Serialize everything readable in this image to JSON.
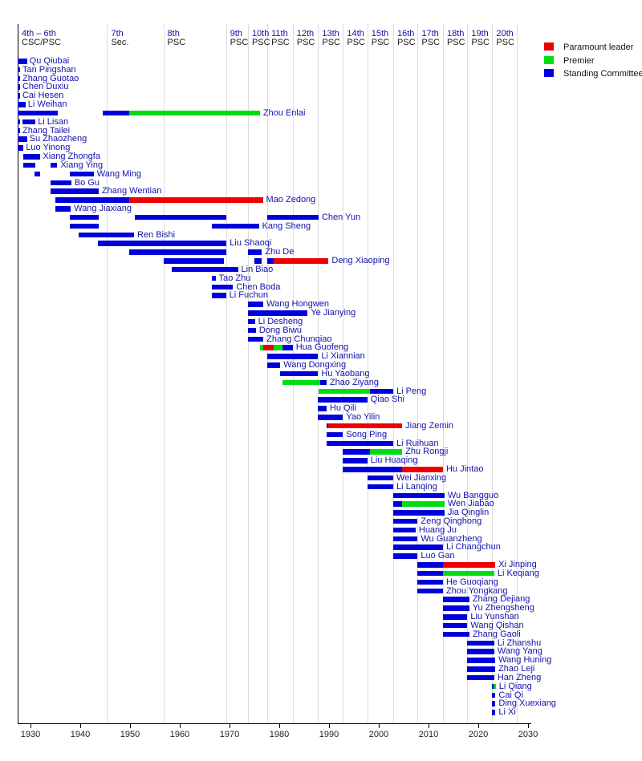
{
  "legend": {
    "items": [
      {
        "label": "Paramount leader",
        "type": "pl"
      },
      {
        "label": "Premier",
        "type": "pm"
      },
      {
        "label": "Standing Committee",
        "type": "sc"
      }
    ]
  },
  "colors": {
    "pl": "#ee0000",
    "pm": "#00dd11",
    "sc": "#0000dd",
    "name_text": "#1111aa",
    "grid": "#dcdcdc",
    "axis_text": "#222222"
  },
  "chart_data": {
    "type": "timeline-gantt",
    "title": "",
    "xlabel": "",
    "axis": {
      "start_year": 1927.42,
      "end_year": 2030.6,
      "tick_years": [
        1930,
        1940,
        1950,
        1960,
        1970,
        1980,
        1990,
        2000,
        2010,
        2020,
        2030
      ],
      "grid": true
    },
    "periods": [
      {
        "label": "4th – 6th",
        "sub": "CSC/PSC",
        "year": 1927.42
      },
      {
        "label": "7th",
        "sub": "Sec.",
        "year": 1945.4
      },
      {
        "label": "8th",
        "sub": "PSC",
        "year": 1956.7
      },
      {
        "label": "9th",
        "sub": "PSC",
        "year": 1969.3
      },
      {
        "label": "10th",
        "sub": "PSC",
        "year": 1973.7
      },
      {
        "label": "11th",
        "sub": "PSC",
        "year": 1977.6
      },
      {
        "label": "12th",
        "sub": "PSC",
        "year": 1982.7
      },
      {
        "label": "13th",
        "sub": "PSC",
        "year": 1987.8
      },
      {
        "label": "14th",
        "sub": "PSC",
        "year": 1992.8
      },
      {
        "label": "15th",
        "sub": "PSC",
        "year": 1997.7
      },
      {
        "label": "16th",
        "sub": "PSC",
        "year": 2002.9
      },
      {
        "label": "17th",
        "sub": "PSC",
        "year": 2007.8
      },
      {
        "label": "18th",
        "sub": "PSC",
        "year": 2012.9
      },
      {
        "label": "19th",
        "sub": "PSC",
        "year": 2017.8
      },
      {
        "label": "20th",
        "sub": "PSC",
        "year": 2022.8
      }
    ],
    "period_boundaries": [
      1945.4,
      1956.7,
      1969.3,
      1973.7,
      1977.6,
      1982.7,
      1987.8,
      1992.8,
      1997.7,
      2002.9,
      2007.8,
      2012.9,
      2017.8,
      2022.8,
      2027.8
    ],
    "segment_format": [
      "type (sc=Standing Committee, pm=Premier, pl=Paramount leader)",
      "start_year",
      "end_year"
    ],
    "members": [
      {
        "name": "Qu Qiubai",
        "segments": [
          [
            "sc",
            1927.42,
            1929.3
          ]
        ]
      },
      {
        "name": "Tan Pingshan",
        "segments": [
          [
            "sc",
            1927.42,
            1927.9
          ]
        ]
      },
      {
        "name": "Zhang Guotao",
        "segments": [
          [
            "sc",
            1927.42,
            1927.9
          ]
        ]
      },
      {
        "name": "Chen Duxiu",
        "segments": [
          [
            "sc",
            1927.42,
            1927.9
          ]
        ]
      },
      {
        "name": "Cai Hesen",
        "segments": [
          [
            "sc",
            1927.42,
            1927.9
          ]
        ]
      },
      {
        "name": "Li Weihan",
        "segments": [
          [
            "sc",
            1927.42,
            1929.0
          ]
        ]
      },
      {
        "name": "Zhou Enlai",
        "segments": [
          [
            "sc",
            1927.42,
            1935.5
          ],
          [
            "sc",
            1944.5,
            1949.9
          ],
          [
            "pm",
            1949.9,
            1976.1
          ]
        ]
      },
      {
        "name": "Li Lisan",
        "segments": [
          [
            "sc",
            1927.42,
            1927.8
          ],
          [
            "sc",
            1928.4,
            1931.0
          ]
        ]
      },
      {
        "name": "Zhang Tailei",
        "segments": [
          [
            "sc",
            1927.42,
            1927.9
          ]
        ]
      },
      {
        "name": "Su Zhaozheng",
        "segments": [
          [
            "sc",
            1927.42,
            1929.3
          ]
        ]
      },
      {
        "name": "Luo Yinong",
        "segments": [
          [
            "sc",
            1927.42,
            1928.6
          ]
        ]
      },
      {
        "name": "Xiang Zhongfa",
        "segments": [
          [
            "sc",
            1928.5,
            1932.0
          ]
        ]
      },
      {
        "name": "Xiang Ying",
        "segments": [
          [
            "sc",
            1928.5,
            1930.9
          ],
          [
            "sc",
            1934.1,
            1935.4
          ]
        ]
      },
      {
        "name": "Wang Ming",
        "segments": [
          [
            "sc",
            1930.8,
            1932.0
          ],
          [
            "sc",
            1937.9,
            1942.7
          ]
        ]
      },
      {
        "name": "Bo Gu",
        "segments": [
          [
            "sc",
            1934.1,
            1938.2
          ]
        ]
      },
      {
        "name": "Zhang Wentian",
        "segments": [
          [
            "sc",
            1934.1,
            1943.7
          ]
        ]
      },
      {
        "name": "Mao Zedong",
        "segments": [
          [
            "sc",
            1935.0,
            1949.9
          ],
          [
            "pl",
            1949.9,
            1976.7
          ]
        ]
      },
      {
        "name": "Wang Jiaxiang",
        "segments": [
          [
            "sc",
            1935.0,
            1938.1
          ]
        ]
      },
      {
        "name": "Chen Yun",
        "segments": [
          [
            "sc",
            1937.9,
            1943.7
          ],
          [
            "sc",
            1950.9,
            1969.4
          ],
          [
            "sc",
            1977.6,
            1987.9
          ]
        ]
      },
      {
        "name": "Kang Sheng",
        "segments": [
          [
            "sc",
            1937.9,
            1943.7
          ],
          [
            "sc",
            1966.5,
            1975.9
          ]
        ]
      },
      {
        "name": "Ren Bishi",
        "segments": [
          [
            "sc",
            1939.6,
            1950.8
          ]
        ]
      },
      {
        "name": "Liu Shaoqi",
        "segments": [
          [
            "sc",
            1943.5,
            1969.4
          ]
        ]
      },
      {
        "name": "Zhu De",
        "segments": [
          [
            "sc",
            1949.9,
            1969.4
          ],
          [
            "sc",
            1973.7,
            1976.5
          ]
        ]
      },
      {
        "name": "Deng Xiaoping",
        "segments": [
          [
            "sc",
            1956.7,
            1968.8
          ],
          [
            "sc",
            1975.0,
            1976.5
          ],
          [
            "sc",
            1977.6,
            1978.9
          ],
          [
            "pl",
            1978.9,
            1989.9
          ]
        ]
      },
      {
        "name": "Lin Biao",
        "segments": [
          [
            "sc",
            1958.4,
            1971.7
          ]
        ]
      },
      {
        "name": "Tao Zhu",
        "segments": [
          [
            "sc",
            1966.5,
            1967.2
          ]
        ]
      },
      {
        "name": "Chen Boda",
        "segments": [
          [
            "sc",
            1966.5,
            1970.7
          ]
        ]
      },
      {
        "name": "Li Fuchun",
        "segments": [
          [
            "sc",
            1966.5,
            1969.3
          ]
        ]
      },
      {
        "name": "Wang Hongwen",
        "segments": [
          [
            "sc",
            1973.7,
            1976.8
          ]
        ]
      },
      {
        "name": "Ye Jianying",
        "segments": [
          [
            "sc",
            1973.7,
            1985.7
          ]
        ]
      },
      {
        "name": "Li Desheng",
        "segments": [
          [
            "sc",
            1973.7,
            1975.1
          ]
        ]
      },
      {
        "name": "Dong Biwu",
        "segments": [
          [
            "sc",
            1973.7,
            1975.3
          ]
        ]
      },
      {
        "name": "Zhang Chunqiao",
        "segments": [
          [
            "sc",
            1973.7,
            1976.8
          ]
        ]
      },
      {
        "name": "Hua Guofeng",
        "segments": [
          [
            "pm",
            1976.1,
            1976.8
          ],
          [
            "pl",
            1976.8,
            1978.9
          ],
          [
            "pm",
            1978.9,
            1980.7
          ],
          [
            "sc",
            1980.7,
            1982.7
          ]
        ]
      },
      {
        "name": "Li Xiannian",
        "segments": [
          [
            "sc",
            1977.6,
            1987.8
          ]
        ]
      },
      {
        "name": "Wang Dongxing",
        "segments": [
          [
            "sc",
            1977.6,
            1980.2
          ]
        ]
      },
      {
        "name": "Hu Yaobang",
        "segments": [
          [
            "sc",
            1980.2,
            1987.8
          ]
        ]
      },
      {
        "name": "Zhao Ziyang",
        "segments": [
          [
            "pm",
            1980.7,
            1988.3
          ],
          [
            "sc",
            1988.3,
            1989.5
          ]
        ]
      },
      {
        "name": "Li Peng",
        "segments": [
          [
            "pm",
            1987.9,
            1998.3
          ],
          [
            "sc",
            1998.3,
            2002.9
          ]
        ]
      },
      {
        "name": "Qiao Shi",
        "segments": [
          [
            "sc",
            1987.8,
            1997.7
          ]
        ]
      },
      {
        "name": "Hu Qili",
        "segments": [
          [
            "sc",
            1987.8,
            1989.5
          ]
        ]
      },
      {
        "name": "Yao Yilin",
        "segments": [
          [
            "sc",
            1987.8,
            1992.8
          ]
        ]
      },
      {
        "name": "Jiang Zemin",
        "segments": [
          [
            "sc",
            1989.5,
            1989.9
          ],
          [
            "pl",
            1989.9,
            2004.7
          ]
        ]
      },
      {
        "name": "Song Ping",
        "segments": [
          [
            "sc",
            1989.5,
            1992.8
          ]
        ]
      },
      {
        "name": "Li Ruihuan",
        "segments": [
          [
            "sc",
            1989.5,
            2002.9
          ]
        ]
      },
      {
        "name": "Zhu Rongji",
        "segments": [
          [
            "sc",
            1992.8,
            1998.3
          ],
          [
            "pm",
            1998.3,
            2004.7
          ]
        ]
      },
      {
        "name": "Liu Huaqing",
        "segments": [
          [
            "sc",
            1992.8,
            1997.7
          ]
        ]
      },
      {
        "name": "Hu Jintao",
        "segments": [
          [
            "sc",
            1992.8,
            2004.7
          ],
          [
            "pl",
            2004.7,
            2012.9
          ]
        ]
      },
      {
        "name": "Wei Jianxing",
        "segments": [
          [
            "sc",
            1997.7,
            2002.9
          ]
        ]
      },
      {
        "name": "Li Lanqing",
        "segments": [
          [
            "sc",
            1997.7,
            2002.9
          ]
        ]
      },
      {
        "name": "Wu Bangguo",
        "segments": [
          [
            "sc",
            2002.9,
            2013.2
          ]
        ]
      },
      {
        "name": "Wen Jiabao",
        "segments": [
          [
            "sc",
            2002.9,
            2004.7
          ],
          [
            "pm",
            2004.7,
            2013.2
          ]
        ]
      },
      {
        "name": "Jia Qinglin",
        "segments": [
          [
            "sc",
            2002.9,
            2013.2
          ]
        ]
      },
      {
        "name": "Zeng Qinghong",
        "segments": [
          [
            "sc",
            2002.9,
            2007.8
          ]
        ]
      },
      {
        "name": "Huang Ju",
        "segments": [
          [
            "sc",
            2002.9,
            2007.4
          ]
        ]
      },
      {
        "name": "Wu Guanzheng",
        "segments": [
          [
            "sc",
            2002.9,
            2007.8
          ]
        ]
      },
      {
        "name": "Li Changchun",
        "segments": [
          [
            "sc",
            2002.9,
            2012.9
          ]
        ]
      },
      {
        "name": "Luo Gan",
        "segments": [
          [
            "sc",
            2002.9,
            2007.8
          ]
        ]
      },
      {
        "name": "Xi Jinping",
        "segments": [
          [
            "sc",
            2007.8,
            2012.9
          ],
          [
            "pl",
            2012.9,
            2023.4
          ]
        ]
      },
      {
        "name": "Li Keqiang",
        "segments": [
          [
            "sc",
            2007.8,
            2012.9
          ],
          [
            "pm",
            2012.9,
            2023.2
          ]
        ]
      },
      {
        "name": "He Guoqiang",
        "segments": [
          [
            "sc",
            2007.8,
            2012.9
          ]
        ]
      },
      {
        "name": "Zhou Yongkang",
        "segments": [
          [
            "sc",
            2007.8,
            2012.9
          ]
        ]
      },
      {
        "name": "Zhang Dejiang",
        "segments": [
          [
            "sc",
            2012.9,
            2018.2
          ]
        ]
      },
      {
        "name": "Yu Zhengsheng",
        "segments": [
          [
            "sc",
            2012.9,
            2018.2
          ]
        ]
      },
      {
        "name": "Liu Yunshan",
        "segments": [
          [
            "sc",
            2012.9,
            2017.8
          ]
        ]
      },
      {
        "name": "Wang Qishan",
        "segments": [
          [
            "sc",
            2012.9,
            2017.8
          ]
        ]
      },
      {
        "name": "Zhang Gaoli",
        "segments": [
          [
            "sc",
            2012.9,
            2018.2
          ]
        ]
      },
      {
        "name": "Li Zhanshu",
        "segments": [
          [
            "sc",
            2017.8,
            2023.2
          ]
        ]
      },
      {
        "name": "Wang Yang",
        "segments": [
          [
            "sc",
            2017.8,
            2023.2
          ]
        ]
      },
      {
        "name": "Wang Huning",
        "segments": [
          [
            "sc",
            2017.8,
            2023.4
          ]
        ]
      },
      {
        "name": "Zhao Leji",
        "segments": [
          [
            "sc",
            2017.8,
            2023.4
          ]
        ]
      },
      {
        "name": "Han Zheng",
        "segments": [
          [
            "sc",
            2017.8,
            2023.2
          ]
        ]
      },
      {
        "name": "Li Qiang",
        "segments": [
          [
            "sc",
            2022.8,
            2023.1
          ],
          [
            "pm",
            2023.1,
            2023.45
          ]
        ]
      },
      {
        "name": "Cai Qi",
        "segments": [
          [
            "sc",
            2022.8,
            2023.45
          ]
        ]
      },
      {
        "name": "Ding Xuexiang",
        "segments": [
          [
            "sc",
            2022.8,
            2023.45
          ]
        ]
      },
      {
        "name": "Li Xi",
        "segments": [
          [
            "sc",
            2022.8,
            2023.45
          ]
        ]
      }
    ]
  }
}
